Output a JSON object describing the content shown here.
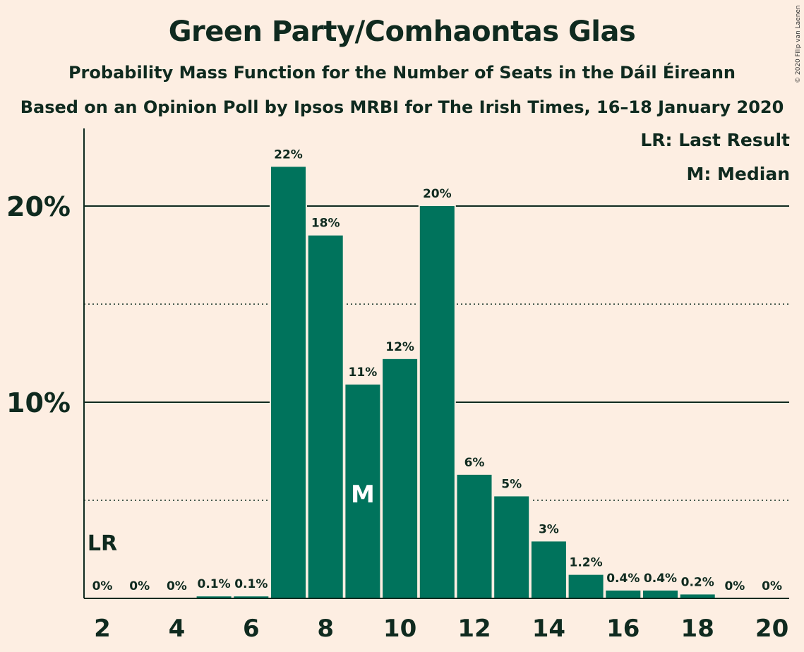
{
  "title": "Green Party/Comhaontas Glas",
  "subtitle": "Probability Mass Function for the Number of Seats in the Dáil Éireann",
  "subtitle2": "Based on an Opinion Poll by Ipsos MRBI for The Irish Times, 16–18 January 2020",
  "copyright": "© 2020 Filip van Laenen",
  "legend": {
    "last_result": "LR: Last Result",
    "median": "M: Median"
  },
  "colors": {
    "background": "#fdeee2",
    "bar": "#00735c",
    "text": "#0f2a1f"
  },
  "chart_data": {
    "type": "bar",
    "x": [
      2,
      3,
      4,
      5,
      6,
      7,
      8,
      9,
      10,
      11,
      12,
      13,
      14,
      15,
      16,
      17,
      18,
      19,
      20
    ],
    "values": [
      0,
      0,
      0,
      0.1,
      0.1,
      22,
      18.5,
      10.9,
      12.2,
      20,
      6.3,
      5.2,
      2.9,
      1.2,
      0.4,
      0.4,
      0.2,
      0,
      0
    ],
    "labels": [
      "0%",
      "0%",
      "0%",
      "0.1%",
      "0.1%",
      "22%",
      "18%",
      "11%",
      "12%",
      "20%",
      "6%",
      "5%",
      "3%",
      "1.2%",
      "0.4%",
      "0.4%",
      "0.2%",
      "0%",
      "0%"
    ],
    "x_ticks": [
      2,
      4,
      6,
      8,
      10,
      12,
      14,
      16,
      18,
      20
    ],
    "y_ticks": [
      {
        "value": 10,
        "label": "10%"
      },
      {
        "value": 20,
        "label": "20%"
      }
    ],
    "minor_y_ticks": [
      5,
      15
    ],
    "ylim": [
      0,
      24
    ],
    "last_result": {
      "x": 2,
      "label": "LR"
    },
    "median": {
      "x": 9,
      "label": "M"
    },
    "grid": true,
    "legend_position": "top-right"
  }
}
